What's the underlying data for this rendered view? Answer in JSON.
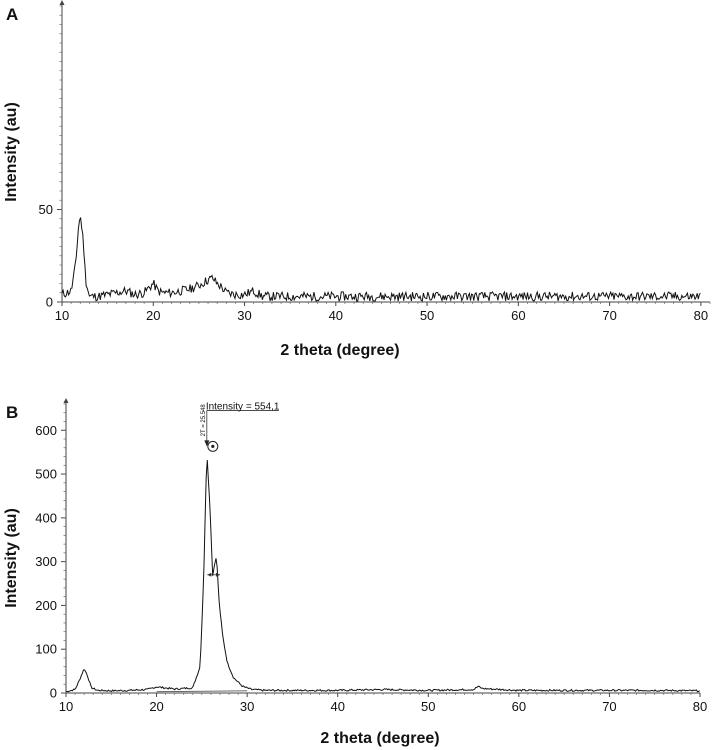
{
  "chart_data": [
    {
      "type": "line",
      "panel_label": "A",
      "xlabel": "2 theta (degree)",
      "ylabel": "Intensity (au)",
      "xlim": [
        10,
        81
      ],
      "ylim": [
        0,
        160
      ],
      "x_ticks": [
        10,
        20,
        30,
        40,
        50,
        60,
        70,
        80
      ],
      "y_ticks": [
        0,
        50
      ],
      "grid": false,
      "series": [
        {
          "x": [
            10,
            11,
            11.5,
            11.8,
            12.0,
            12.3,
            12.6,
            13,
            14,
            15,
            16,
            17,
            18,
            19,
            20,
            20.5,
            21,
            22,
            23,
            24,
            25,
            26,
            26.5,
            27,
            27.5,
            28,
            29,
            30,
            31,
            32,
            35,
            40,
            45,
            50,
            55,
            60,
            65,
            70,
            75,
            80
          ],
          "y": [
            4,
            6,
            20,
            40,
            47,
            35,
            12,
            3,
            3,
            4,
            5,
            6,
            4,
            5,
            10,
            6,
            5,
            5,
            6,
            7,
            9,
            12,
            13,
            10,
            8,
            5,
            4,
            4,
            6,
            3,
            3,
            3,
            3,
            3,
            3,
            3,
            3,
            3,
            3,
            3
          ]
        }
      ]
    },
    {
      "type": "line",
      "panel_label": "B",
      "xlabel": "2 theta (degree)",
      "ylabel": "Intensity (au)",
      "xlim": [
        10,
        80
      ],
      "ylim": [
        0,
        660
      ],
      "x_ticks": [
        10,
        20,
        30,
        40,
        50,
        60,
        70,
        80
      ],
      "y_ticks": [
        0,
        100,
        200,
        300,
        400,
        500,
        600
      ],
      "grid": false,
      "series": [
        {
          "x": [
            10,
            11,
            11.5,
            12.0,
            12.4,
            12.8,
            13.5,
            15,
            17,
            19,
            20,
            22,
            24,
            24.8,
            25.2,
            25.548,
            25.9,
            26.2,
            26.6,
            26.9,
            27.3,
            27.8,
            28.5,
            29.5,
            30.5,
            32,
            35,
            40,
            45,
            50,
            55,
            55.5,
            56,
            60,
            65,
            70,
            75,
            80
          ],
          "y": [
            3,
            8,
            30,
            56,
            38,
            12,
            6,
            5,
            6,
            8,
            14,
            9,
            12,
            60,
            260,
            554,
            420,
            270,
            315,
            210,
            130,
            70,
            35,
            15,
            8,
            6,
            6,
            6,
            8,
            6,
            8,
            15,
            10,
            6,
            6,
            6,
            6,
            5
          ]
        }
      ],
      "annotations": {
        "peak_label": "Intensity = 554,1",
        "peak_position_label": "2T = 25.548",
        "peak_x": 25.548,
        "peak_y": 554.1,
        "fwhm_marker_y": 270,
        "fwhm_range": [
          25.6,
          27.0
        ],
        "baseline_y": [
          3,
          5
        ]
      }
    }
  ]
}
